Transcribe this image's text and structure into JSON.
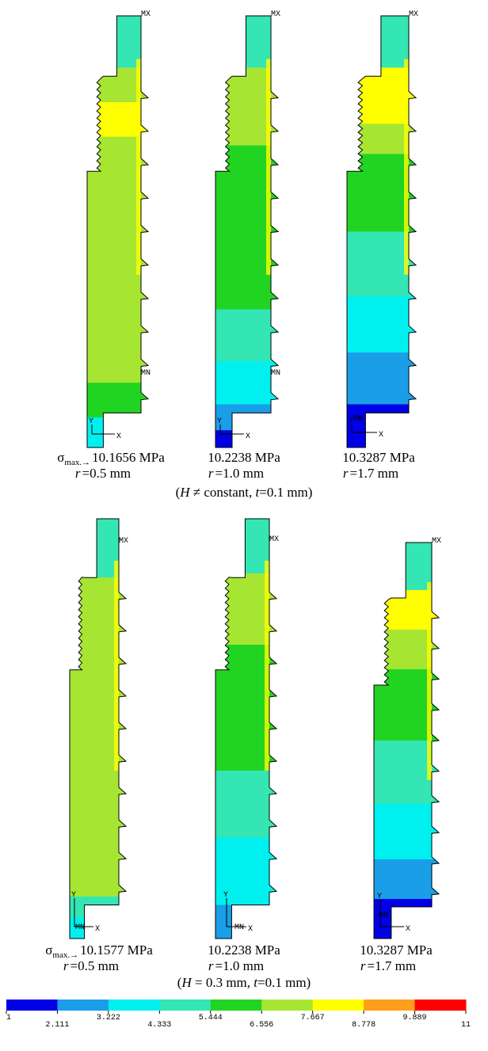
{
  "rows": [
    {
      "stress_symbol": "σ",
      "stress_subscript": "max.→",
      "models": [
        {
          "stress": "10.1656 MPa",
          "r_symbol": "r",
          "r_value": "=0.5 mm",
          "labels": {
            "max": "MX",
            "min": "MN",
            "y": "Y",
            "x": "X"
          }
        },
        {
          "stress": "10.2238 MPa",
          "r_symbol": "r",
          "r_value": "=1.0 mm",
          "labels": {
            "max": "MX",
            "min": "MN",
            "y": "Y",
            "x": "X"
          }
        },
        {
          "stress": "10.3287 MPa",
          "r_symbol": "r",
          "r_value": "=1.7 mm",
          "labels": {
            "max": "MX",
            "min": "MN",
            "y": "Y",
            "x": "X"
          }
        }
      ],
      "caption": [
        "(",
        "H",
        " ≠ constant, ",
        "t",
        "=0.1 mm)"
      ]
    },
    {
      "stress_symbol": "σ",
      "stress_subscript": "max.→",
      "models": [
        {
          "stress": "10.1577 MPa",
          "r_symbol": "r",
          "r_value": "=0.5 mm",
          "labels": {
            "max": "MX",
            "min": "MN",
            "y": "Y",
            "x": "X"
          }
        },
        {
          "stress": "10.2238 MPa",
          "r_symbol": "r",
          "r_value": "=1.0 mm",
          "labels": {
            "max": "MX",
            "min": "MN",
            "y": "Y",
            "x": "X"
          }
        },
        {
          "stress": "10.3287 MPa",
          "r_symbol": "r",
          "r_value": "=1.7 mm",
          "labels": {
            "max": "MX",
            "min": "MN",
            "y": "Y",
            "x": "X"
          }
        }
      ],
      "caption": [
        "(",
        "H",
        " = 0.3 mm, ",
        "t",
        "=0.1 mm)"
      ]
    }
  ],
  "colorbar": {
    "colors": [
      "#0000e6",
      "#1a9ee8",
      "#00f0f0",
      "#33e6b3",
      "#22d422",
      "#a6e633",
      "#ffff00",
      "#ff9f1a",
      "#ff0000"
    ],
    "ticks": [
      1,
      2.111,
      3.222,
      4.333,
      5.444,
      6.556,
      7.667,
      8.778,
      9.889,
      11
    ]
  }
}
